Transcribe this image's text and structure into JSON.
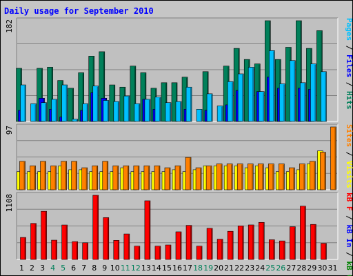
{
  "title": "Daily usage for September 2010",
  "colors": {
    "background": "#c6c6c6",
    "plot_bg": "#c0c0c0",
    "title": "#0000ff",
    "pages": "#00c0ff",
    "files": "#0000ff",
    "hits": "#00805a",
    "visits": "#ffff00",
    "sites": "#ff8000",
    "kb_out": "#008000",
    "kb_in": "#0000ff",
    "kb_f": "#ff0000",
    "weekday_day": "#000000",
    "weekend_day": "#00805a"
  },
  "axis_max": {
    "hits": "182",
    "visits": "97",
    "kbytes": "1108"
  },
  "labels": {
    "panel1": [
      {
        "text": "Hits",
        "color": "#00805a"
      },
      {
        "text": " / ",
        "color": "#000000"
      },
      {
        "text": "Files",
        "color": "#0000ff"
      },
      {
        "text": " / ",
        "color": "#000000"
      },
      {
        "text": "Pages",
        "color": "#00c0ff"
      }
    ],
    "panel2": [
      {
        "text": "Visits",
        "color": "#ffff00"
      },
      {
        "text": " / ",
        "color": "#000000"
      },
      {
        "text": "Sites",
        "color": "#ff8000"
      }
    ],
    "panel3": [
      {
        "text": "kB Out",
        "color": "#008000"
      },
      {
        "text": " / ",
        "color": "#000000"
      },
      {
        "text": "kB In",
        "color": "#0000ff"
      },
      {
        "text": " / ",
        "color": "#000000"
      },
      {
        "text": "kB F",
        "color": "#ff0000"
      }
    ]
  },
  "chart_data": {
    "type": "bar",
    "title": "Daily usage for September 2010",
    "categories": [
      "1",
      "2",
      "3",
      "4",
      "5",
      "6",
      "7",
      "8",
      "9",
      "10",
      "11",
      "12",
      "13",
      "14",
      "15",
      "16",
      "17",
      "18",
      "19",
      "20",
      "21",
      "22",
      "23",
      "24",
      "25",
      "26",
      "27",
      "28",
      "29",
      "30",
      "31"
    ],
    "weekend_days": [
      "4",
      "5",
      "11",
      "12",
      "18",
      "19",
      "25",
      "26"
    ],
    "panels": [
      {
        "name": "hits_files_pages",
        "ylim": [
          0,
          182
        ],
        "series": [
          {
            "name": "Hits",
            "values": [
              96,
              0,
              96,
              98,
              74,
              60,
              88,
              118,
              126,
              66,
              62,
              100,
              88,
              60,
              70,
              70,
              80,
              0,
              90,
              0,
              100,
              132,
              112,
              104,
              182,
              112,
              134,
              182,
              132,
              164,
              0
            ]
          },
          {
            "name": "Files",
            "values": [
              20,
              0,
              42,
              22,
              8,
              0,
              20,
              52,
              42,
              0,
              0,
              0,
              40,
              22,
              0,
              0,
              22,
              0,
              20,
              0,
              30,
              56,
              0,
              54,
              80,
              60,
              0,
              60,
              58,
              0,
              0
            ]
          },
          {
            "name": "Pages",
            "values": [
              66,
              32,
              34,
              40,
              66,
              4,
              32,
              64,
              38,
              36,
              46,
              32,
              40,
              44,
              34,
              36,
              62,
              22,
              50,
              28,
              72,
              86,
              98,
              54,
              128,
              68,
              110,
              70,
              104,
              90,
              0
            ]
          }
        ]
      },
      {
        "name": "visits_sites",
        "ylim": [
          0,
          97
        ],
        "series": [
          {
            "name": "Visits",
            "values": [
              28,
              28,
              28,
              28,
              37,
              31,
              31,
              28,
              28,
              28,
              34,
              28,
              28,
              28,
              28,
              31,
              28,
              31,
              37,
              37,
              37,
              37,
              34,
              37,
              34,
              28,
              28,
              31,
              40,
              60,
              0
            ]
          },
          {
            "name": "Sites",
            "values": [
              44,
              37,
              44,
              37,
              44,
              44,
              34,
              37,
              44,
              37,
              37,
              37,
              37,
              37,
              34,
              37,
              50,
              34,
              37,
              40,
              40,
              40,
              40,
              40,
              40,
              40,
              34,
              40,
              44,
              58,
              97
            ]
          }
        ]
      },
      {
        "name": "kbytes",
        "ylim": [
          0,
          1108
        ],
        "series": [
          {
            "name": "kB Out",
            "values": [
              0,
              0,
              0,
              0,
              0,
              0,
              0,
              0,
              0,
              0,
              0,
              0,
              0,
              0,
              0,
              0,
              0,
              0,
              0,
              0,
              0,
              0,
              0,
              0,
              0,
              0,
              0,
              0,
              0,
              0,
              0
            ]
          },
          {
            "name": "kB In",
            "values": [
              0,
              0,
              0,
              0,
              0,
              0,
              0,
              0,
              0,
              0,
              0,
              0,
              0,
              0,
              0,
              0,
              0,
              0,
              0,
              0,
              0,
              0,
              0,
              0,
              0,
              0,
              0,
              0,
              0,
              0,
              0
            ]
          },
          {
            "name": "kB F",
            "values": [
              380,
              622,
              832,
              333,
              595,
              308,
              288,
              1108,
              722,
              330,
              440,
              230,
              1013,
              230,
              250,
              477,
              588,
              230,
              538,
              350,
              486,
              580,
              596,
              640,
              340,
              320,
              565,
              920,
              605,
              278,
              0
            ]
          }
        ]
      }
    ]
  }
}
